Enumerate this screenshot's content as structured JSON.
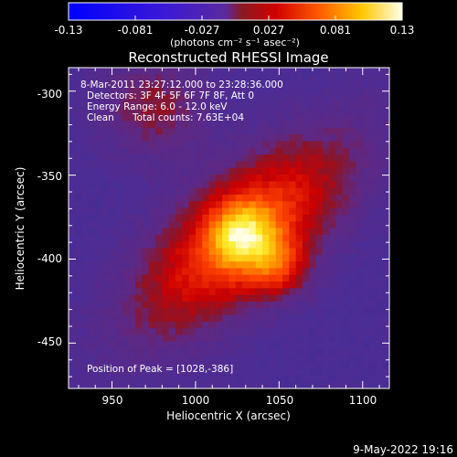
{
  "colorbar": {
    "tick_labels": [
      "-0.13",
      "-0.081",
      "-0.027",
      "0.027",
      "0.081",
      "0.13"
    ],
    "units": "(photons cm⁻² s⁻¹ asec⁻²)",
    "range": [
      -0.13,
      0.13
    ]
  },
  "title": "Reconstructed RHESSI Image",
  "annotations": {
    "time": "8-Mar-2011 23:27:12.000 to 23:28:36.000",
    "detectors": "Detectors: 3F 4F 5F 6F 7F 8F, Att 0",
    "energy": "Energy Range: 6.0 - 12.0 keV",
    "method": "Clean",
    "counts": "Total counts: 7.63E+04",
    "peak": "Position of Peak = [1028,-386]"
  },
  "axes": {
    "xlabel": "Heliocentric X (arcsec)",
    "ylabel": "Heliocentric Y (arcsec)",
    "x_ticks": [
      "950",
      "1000",
      "1050",
      "1100"
    ],
    "y_ticks": [
      "-300",
      "-350",
      "-400",
      "-450"
    ],
    "xlim": [
      924,
      1116
    ],
    "ylim": [
      -477,
      -286
    ]
  },
  "image": {
    "peak": {
      "x": 1028,
      "y": -386
    },
    "colormap": "rhessi color table (blue-purple-red-orange-yellow-white)"
  },
  "footer": {
    "date": "9-May-2022 19:16"
  }
}
